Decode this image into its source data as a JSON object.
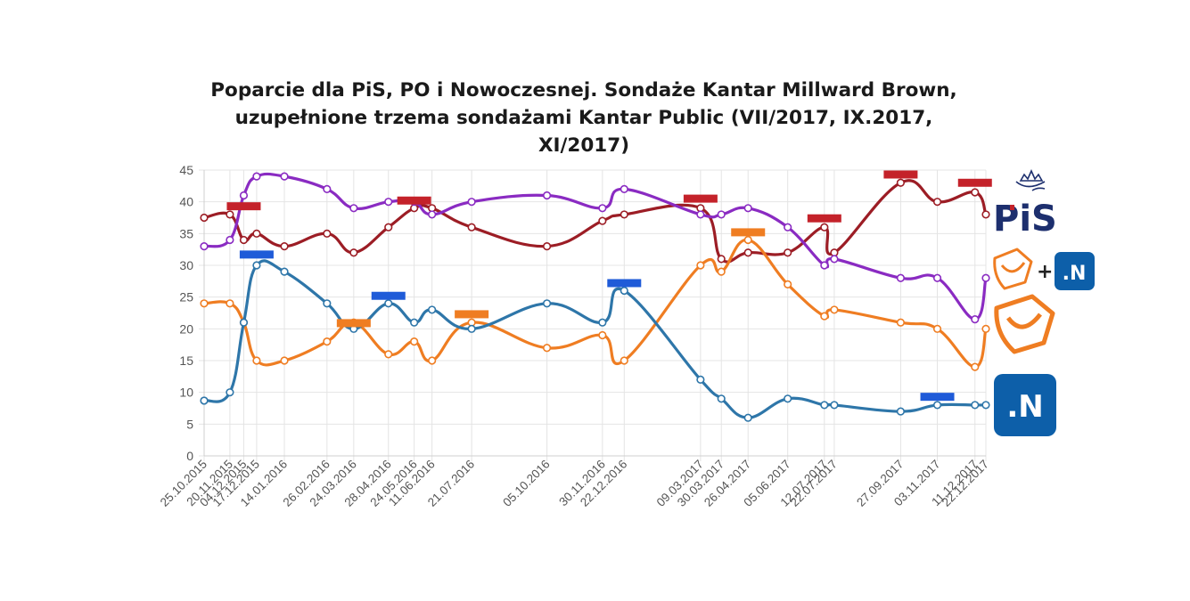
{
  "chart_data": {
    "type": "line",
    "title": [
      "Poparcie dla PiS, PO i Nowoczesnej. Sondaże Kantar Millward Brown,",
      "uzupełnione trzema sondażami Kantar Public (VII/2017, IX.2017,",
      "XI/2017)"
    ],
    "xlabel": "",
    "ylabel": "",
    "ylim": [
      0,
      45
    ],
    "yticks": [
      0,
      5,
      10,
      15,
      20,
      25,
      30,
      35,
      40,
      45
    ],
    "grid": true,
    "x": [
      "25.10.2015",
      "20.11.2015",
      "04.12.2015",
      "17.12.2015",
      "14.01.2016",
      "26.02.2016",
      "24.03.2016",
      "28.04.2016",
      "24.05.2016",
      "11.06.2016",
      "21.07.2016",
      "05.10.2016",
      "30.11.2016",
      "22.12.2016",
      "09.03.2017",
      "30.03.2017",
      "26.04.2017",
      "05.06.2017",
      "12.07.2017",
      "22.07.2017",
      "27.09.2017",
      "03.11.2017",
      "11.12.2017",
      "22.12.2017"
    ],
    "series": [
      {
        "key": "pis",
        "color": "#9c1d25",
        "values": [
          37.5,
          38,
          34,
          35,
          33,
          35,
          32,
          36,
          39,
          39,
          36,
          33,
          37,
          38,
          39,
          31,
          32,
          32,
          36,
          32,
          43,
          40,
          41.5,
          38
        ]
      },
      {
        "key": "po_n",
        "color": "#8a2bc2",
        "values": [
          33,
          34,
          41,
          44,
          44,
          42,
          39,
          40,
          40,
          38,
          40,
          41,
          39,
          42,
          38,
          38,
          39,
          36,
          30,
          31,
          28,
          28,
          21.5,
          28
        ]
      },
      {
        "key": "po",
        "color": "#ef7d22",
        "values": [
          24,
          24,
          21,
          15,
          15,
          18,
          21,
          16,
          18,
          15,
          21,
          17,
          19,
          15,
          30,
          29,
          34,
          27,
          22,
          23,
          21,
          20,
          14,
          20
        ]
      },
      {
        "key": "n",
        "color": "#2e76a9",
        "values": [
          8.7,
          10,
          21,
          30,
          29,
          24,
          20,
          24,
          21,
          23,
          20,
          24,
          21,
          26,
          12,
          9,
          6,
          9,
          8,
          8,
          7,
          8,
          8,
          8
        ]
      }
    ],
    "markers": [
      {
        "color": "#c4222a",
        "x": "04.12.2015",
        "value": 39.3
      },
      {
        "color": "#1f5bd8",
        "x": "17.12.2015",
        "value": 31.7
      },
      {
        "color": "#ef7d22",
        "x": "24.03.2016",
        "value": 20.9
      },
      {
        "color": "#1f5bd8",
        "x": "28.04.2016",
        "value": 25.2
      },
      {
        "color": "#c4222a",
        "x": "24.05.2016",
        "value": 40.2
      },
      {
        "color": "#ef7d22",
        "x": "21.07.2016",
        "value": 22.3
      },
      {
        "color": "#1f5bd8",
        "x": "22.12.2016",
        "value": 27.2
      },
      {
        "color": "#c4222a",
        "x": "09.03.2017",
        "value": 40.5
      },
      {
        "color": "#ef7d22",
        "x": "26.04.2017",
        "value": 35.2
      },
      {
        "color": "#c4222a",
        "x": "12.07.2017",
        "value": 37.4
      },
      {
        "color": "#c4222a",
        "x": "27.09.2017",
        "value": 44.3
      },
      {
        "color": "#1f5bd8",
        "x": "03.11.2017",
        "value": 9.3
      },
      {
        "color": "#c4222a",
        "x": "11.12.2017",
        "value": 43.0
      }
    ]
  },
  "legend": {
    "pis_logo_text": "PiS",
    "plus_sign": "+",
    "n_logo_text": ".N"
  }
}
